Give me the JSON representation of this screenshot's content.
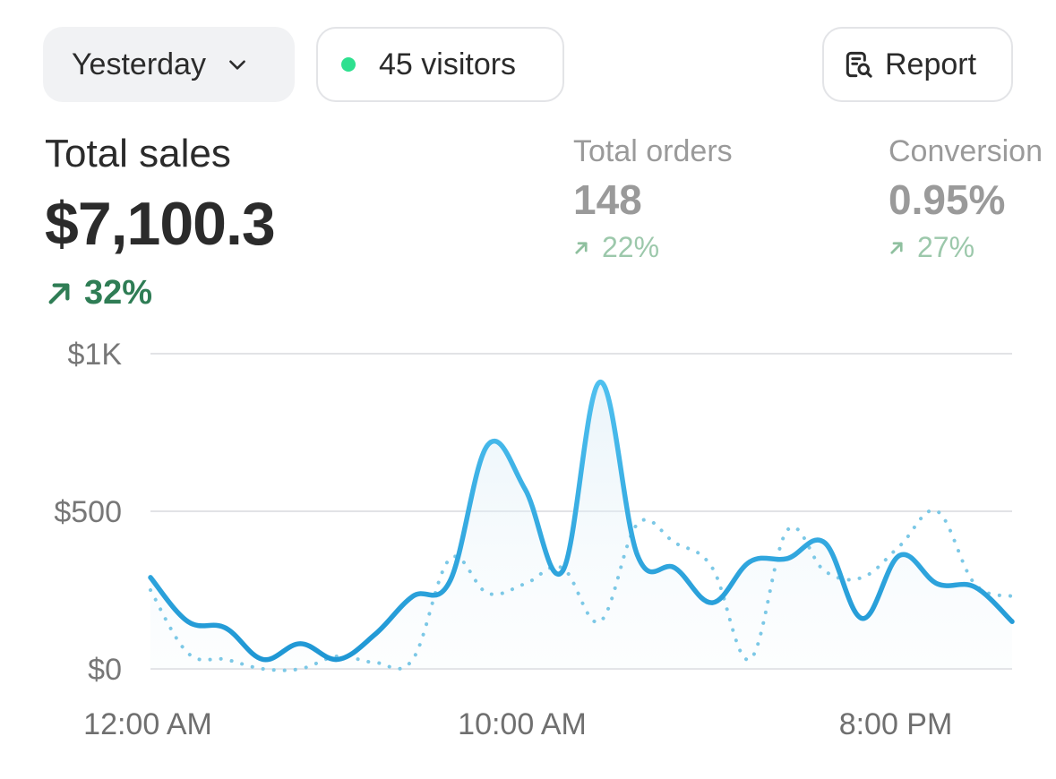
{
  "header": {
    "date_range": "Yesterday",
    "visitors": "45 visitors",
    "report_label": "Report",
    "colors": {
      "live_dot": "#2ee08f"
    }
  },
  "metrics": {
    "total_sales": {
      "label": "Total sales",
      "value": "$7,100.3",
      "delta": "32%"
    },
    "total_orders": {
      "label": "Total orders",
      "value": "148",
      "delta": "22%"
    },
    "conversion": {
      "label": "Conversion",
      "value": "0.95%",
      "delta": "27%"
    }
  },
  "icons": {
    "date_chevron": "chevron-down-icon",
    "report": "report-search-icon",
    "delta": "arrow-up-right-icon"
  },
  "chart_data": {
    "type": "line",
    "y_ticks": [
      "$1K",
      "$500",
      "$0"
    ],
    "x_ticks": [
      "12:00 AM",
      "10:00 AM",
      "8:00 PM"
    ],
    "ylim": [
      0,
      1000
    ],
    "grid": true,
    "x": [
      0,
      1,
      2,
      3,
      4,
      5,
      6,
      7,
      8,
      9,
      10,
      11,
      12,
      13,
      14,
      15,
      16,
      17,
      18,
      19,
      20,
      21,
      22,
      23
    ],
    "series": [
      {
        "style": "solid",
        "color": "#2aa3dc",
        "values": [
          290,
          150,
          130,
          30,
          80,
          30,
          110,
          230,
          280,
          710,
          570,
          310,
          910,
          360,
          320,
          210,
          340,
          350,
          400,
          160,
          360,
          270,
          260,
          150
        ]
      },
      {
        "style": "dotted",
        "color": "#7cc8e6",
        "values": [
          250,
          50,
          30,
          0,
          0,
          40,
          20,
          30,
          350,
          240,
          270,
          320,
          150,
          460,
          400,
          320,
          30,
          440,
          310,
          290,
          390,
          500,
          270,
          230
        ]
      }
    ]
  }
}
